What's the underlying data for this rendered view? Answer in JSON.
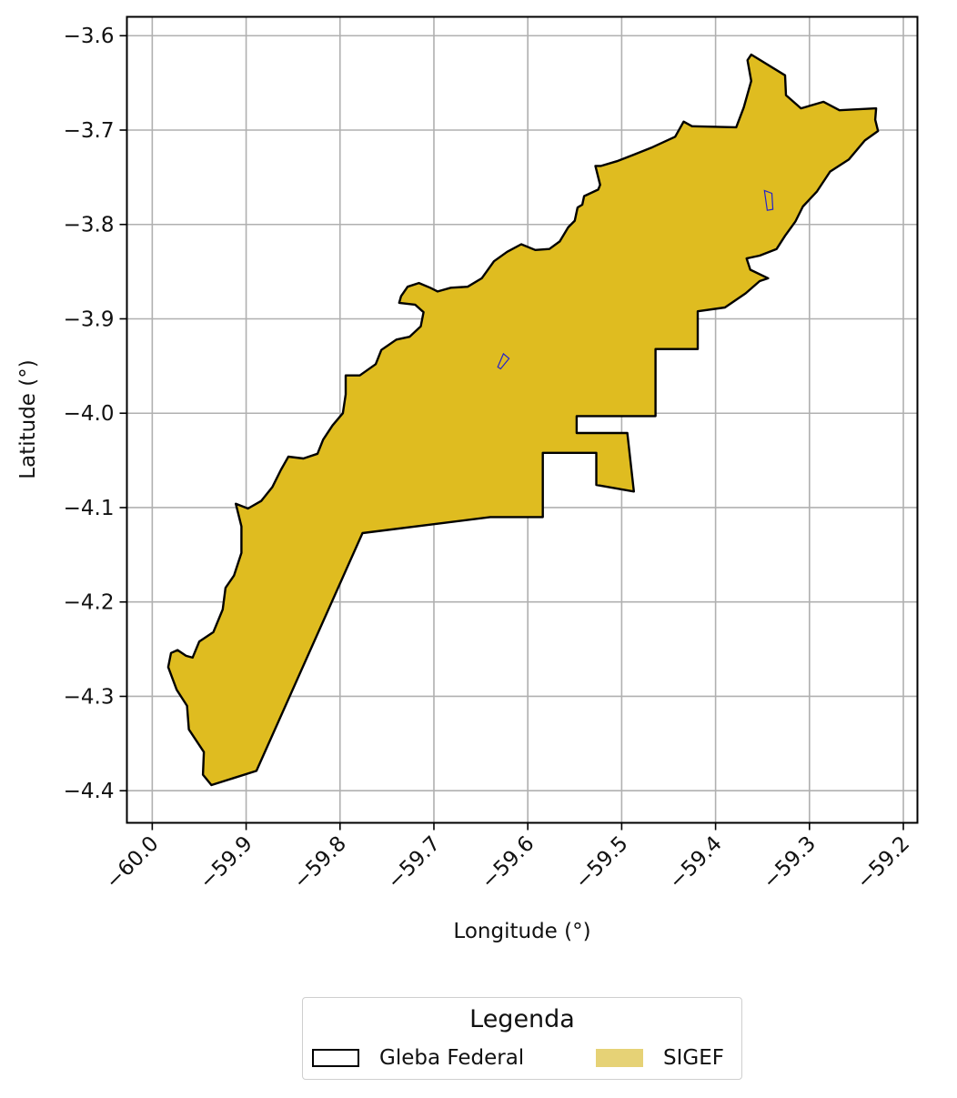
{
  "chart_data": {
    "type": "map",
    "title": "",
    "xlabel": "Longitude (°)",
    "ylabel": "Latitude (°)",
    "xlim": [
      -60.027,
      -59.185
    ],
    "ylim": [
      -4.434,
      -3.58
    ],
    "xticks": [
      -60.0,
      -59.9,
      -59.8,
      -59.7,
      -59.6,
      -59.5,
      -59.4,
      -59.3,
      -59.2
    ],
    "xtick_labels": [
      "−60.0",
      "−59.9",
      "−59.8",
      "−59.7",
      "−59.6",
      "−59.5",
      "−59.4",
      "−59.3",
      "−59.2"
    ],
    "yticks": [
      -3.6,
      -3.7,
      -3.8,
      -3.9,
      -4.0,
      -4.1,
      -4.2,
      -4.3,
      -4.4
    ],
    "ytick_labels": [
      "−3.6",
      "−3.7",
      "−3.8",
      "−3.9",
      "−4.0",
      "−4.1",
      "−4.2",
      "−4.3",
      "−4.4"
    ],
    "grid": true,
    "legend_placement": "bottom-center",
    "colors": {
      "sigef_fill": "#dfbc20",
      "sigef_legend": "#e6d276",
      "gleba_edge": "#000000",
      "parcel_edge": "#2222cc",
      "grid": "#b0b0b0"
    },
    "legend": {
      "title": "Legenda",
      "entries": [
        {
          "label": "Gleba Federal",
          "style": "outline"
        },
        {
          "label": "SIGEF",
          "style": "fill"
        }
      ]
    },
    "gleba_polygon": [
      [
        -59.937,
        -4.394
      ],
      [
        -59.889,
        -4.379
      ],
      [
        -59.776,
        -4.127
      ],
      [
        -59.64,
        -4.11
      ],
      [
        -59.584,
        -4.11
      ],
      [
        -59.584,
        -4.042
      ],
      [
        -59.527,
        -4.042
      ],
      [
        -59.527,
        -4.076
      ],
      [
        -59.487,
        -4.083
      ],
      [
        -59.494,
        -4.021
      ],
      [
        -59.548,
        -4.021
      ],
      [
        -59.548,
        -4.003
      ],
      [
        -59.464,
        -4.003
      ],
      [
        -59.464,
        -3.932
      ],
      [
        -59.419,
        -3.932
      ],
      [
        -59.419,
        -3.892
      ],
      [
        -59.39,
        -3.888
      ],
      [
        -59.368,
        -3.873
      ],
      [
        -59.353,
        -3.86
      ],
      [
        -59.344,
        -3.857
      ],
      [
        -59.363,
        -3.848
      ],
      [
        -59.367,
        -3.836
      ],
      [
        -59.353,
        -3.833
      ],
      [
        -59.335,
        -3.826
      ],
      [
        -59.326,
        -3.812
      ],
      [
        -59.315,
        -3.797
      ],
      [
        -59.307,
        -3.781
      ],
      [
        -59.292,
        -3.765
      ],
      [
        -59.278,
        -3.744
      ],
      [
        -59.258,
        -3.731
      ],
      [
        -59.241,
        -3.711
      ],
      [
        -59.227,
        -3.701
      ],
      [
        -59.23,
        -3.689
      ],
      [
        -59.229,
        -3.677
      ],
      [
        -59.268,
        -3.679
      ],
      [
        -59.285,
        -3.67
      ],
      [
        -59.309,
        -3.677
      ],
      [
        -59.325,
        -3.663
      ],
      [
        -59.326,
        -3.642
      ],
      [
        -59.362,
        -3.62
      ],
      [
        -59.366,
        -3.626
      ],
      [
        -59.362,
        -3.648
      ],
      [
        -59.37,
        -3.676
      ],
      [
        -59.378,
        -3.697
      ],
      [
        -59.425,
        -3.696
      ],
      [
        -59.434,
        -3.691
      ],
      [
        -59.443,
        -3.707
      ],
      [
        -59.467,
        -3.718
      ],
      [
        -59.487,
        -3.726
      ],
      [
        -59.505,
        -3.733
      ],
      [
        -59.522,
        -3.738
      ],
      [
        -59.528,
        -3.738
      ],
      [
        -59.523,
        -3.758
      ],
      [
        -59.525,
        -3.763
      ],
      [
        -59.54,
        -3.77
      ],
      [
        -59.542,
        -3.779
      ],
      [
        -59.547,
        -3.782
      ],
      [
        -59.55,
        -3.796
      ],
      [
        -59.557,
        -3.803
      ],
      [
        -59.566,
        -3.818
      ],
      [
        -59.577,
        -3.826
      ],
      [
        -59.592,
        -3.827
      ],
      [
        -59.607,
        -3.821
      ],
      [
        -59.622,
        -3.829
      ],
      [
        -59.636,
        -3.839
      ],
      [
        -59.649,
        -3.857
      ],
      [
        -59.664,
        -3.866
      ],
      [
        -59.682,
        -3.867
      ],
      [
        -59.696,
        -3.871
      ],
      [
        -59.704,
        -3.867
      ],
      [
        -59.716,
        -3.862
      ],
      [
        -59.728,
        -3.866
      ],
      [
        -59.735,
        -3.876
      ],
      [
        -59.737,
        -3.883
      ],
      [
        -59.72,
        -3.885
      ],
      [
        -59.711,
        -3.893
      ],
      [
        -59.714,
        -3.908
      ],
      [
        -59.726,
        -3.919
      ],
      [
        -59.74,
        -3.922
      ],
      [
        -59.756,
        -3.933
      ],
      [
        -59.762,
        -3.948
      ],
      [
        -59.779,
        -3.96
      ],
      [
        -59.794,
        -3.96
      ],
      [
        -59.794,
        -3.98
      ],
      [
        -59.797,
        -4.0
      ],
      [
        -59.808,
        -4.013
      ],
      [
        -59.818,
        -4.028
      ],
      [
        -59.824,
        -4.043
      ],
      [
        -59.839,
        -4.048
      ],
      [
        -59.855,
        -4.046
      ],
      [
        -59.863,
        -4.06
      ],
      [
        -59.872,
        -4.078
      ],
      [
        -59.884,
        -4.093
      ],
      [
        -59.898,
        -4.101
      ],
      [
        -59.911,
        -4.096
      ],
      [
        -59.905,
        -4.12
      ],
      [
        -59.905,
        -4.148
      ],
      [
        -59.913,
        -4.172
      ],
      [
        -59.922,
        -4.185
      ],
      [
        -59.925,
        -4.208
      ],
      [
        -59.935,
        -4.232
      ],
      [
        -59.95,
        -4.242
      ],
      [
        -59.957,
        -4.259
      ],
      [
        -59.964,
        -4.257
      ],
      [
        -59.973,
        -4.251
      ],
      [
        -59.98,
        -4.254
      ],
      [
        -59.983,
        -4.269
      ],
      [
        -59.974,
        -4.293
      ],
      [
        -59.963,
        -4.31
      ],
      [
        -59.961,
        -4.335
      ],
      [
        -59.945,
        -4.359
      ],
      [
        -59.946,
        -4.383
      ],
      [
        -59.937,
        -4.394
      ]
    ],
    "parcels": [
      [
        [
          -59.632,
          -3.951
        ],
        [
          -59.626,
          -3.937
        ],
        [
          -59.62,
          -3.942
        ],
        [
          -59.629,
          -3.953
        ],
        [
          -59.632,
          -3.951
        ]
      ],
      [
        [
          -59.348,
          -3.764
        ],
        [
          -59.34,
          -3.767
        ],
        [
          -59.339,
          -3.784
        ],
        [
          -59.345,
          -3.785
        ],
        [
          -59.348,
          -3.764
        ]
      ]
    ]
  }
}
